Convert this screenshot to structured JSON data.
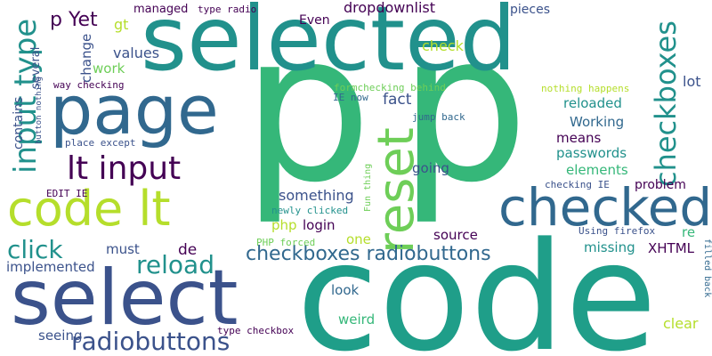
{
  "words": {
    "p_big1": "p",
    "p_big2": "p",
    "code_big": "code",
    "selected": "selected",
    "select": "select",
    "page": "page",
    "code_lt": "code lt",
    "checked": "checked",
    "reset": "reset",
    "lt_input": "lt input",
    "input_type": "input type",
    "checkboxes_v": "checkboxes",
    "checkboxes_radiobuttons": "checkboxes radiobuttons",
    "radiobuttons": "radiobuttons",
    "reload": "reload",
    "click": "click",
    "p_yet": "p Yet",
    "managed": "managed",
    "type_radio": "type radio",
    "even": "Even",
    "dropdownlist": "dropdownlist",
    "pieces": "pieces",
    "gt": "gt",
    "values": "values",
    "work": "work",
    "change": "change",
    "several": "several",
    "contains": "contains",
    "way_checking": "way checking",
    "button_nothing": "button nothing",
    "place_except": "place except",
    "edit_ie": "EDIT IE",
    "formchecking_behind": "formchecking behind",
    "ie_now": "IE now",
    "jump_back": "jump back",
    "fact": "fact",
    "check": "check",
    "lot": "lot",
    "nothing_happens": "nothing happens",
    "reloaded": "reloaded",
    "working": "Working",
    "means": "means",
    "passwords": "passwords",
    "elements": "elements",
    "going": "going",
    "checking_ie": "checking IE",
    "problem": "problem",
    "fun_thing": "Fun thing",
    "something": "something",
    "newly_clicked": "newly clicked",
    "php": "php",
    "login": "login",
    "source": "source",
    "using_firefox": "Using firefox",
    "re": "re",
    "filled_back": "filled back",
    "one": "one",
    "missing": "missing",
    "xhtml": "XHTML",
    "php_forced": "PHP forced",
    "must": "must",
    "de": "de",
    "implemented": "implemented",
    "look": "look",
    "weird": "weird",
    "seeing": "seeing",
    "type_checkbox": "type checkbox",
    "clear": "clear"
  },
  "colors": {
    "dark_purple": "#440154",
    "indigo": "#3b528b",
    "blue": "#31688e",
    "teal": "#21918c",
    "green_teal": "#1f9e89",
    "green": "#35b779",
    "light_green": "#6ece58",
    "yellow_green": "#b5de2b",
    "background": "#ffffff"
  }
}
